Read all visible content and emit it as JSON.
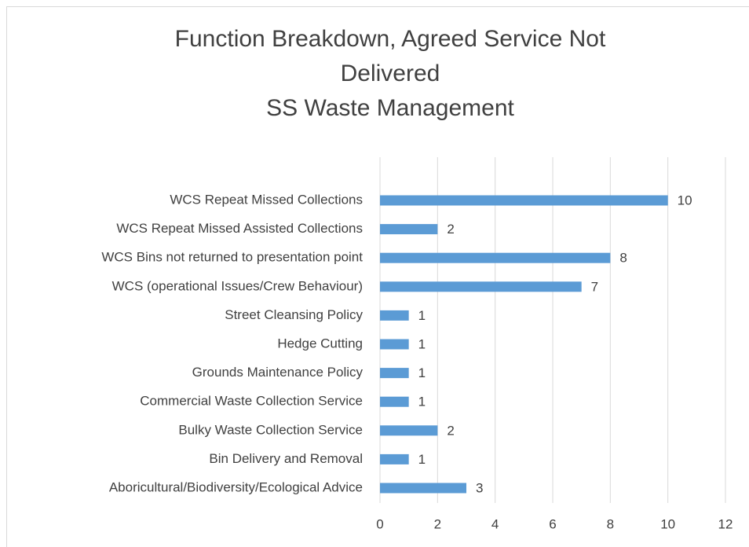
{
  "chart_data": {
    "type": "barh",
    "title": "Function Breakdown, Agreed Service Not Delivered",
    "subtitle": "SS Waste Management",
    "categories": [
      "WCS Repeat Missed Collections",
      "WCS Repeat Missed Assisted Collections",
      "WCS Bins not returned to presentation point",
      "WCS (operational Issues/Crew Behaviour)",
      "Street Cleansing Policy",
      "Hedge Cutting",
      "Grounds Maintenance Policy",
      "Commercial Waste Collection Service",
      "Bulky Waste Collection Service",
      "Bin Delivery and Removal",
      "Aboricultural/Biodiversity/Ecological Advice"
    ],
    "values": [
      10,
      2,
      8,
      7,
      1,
      1,
      1,
      1,
      2,
      1,
      3
    ],
    "color": "#5b9bd5",
    "xlim": [
      0,
      12
    ],
    "xticks": [
      0,
      2,
      4,
      6,
      8,
      10,
      12
    ],
    "grid": true
  }
}
